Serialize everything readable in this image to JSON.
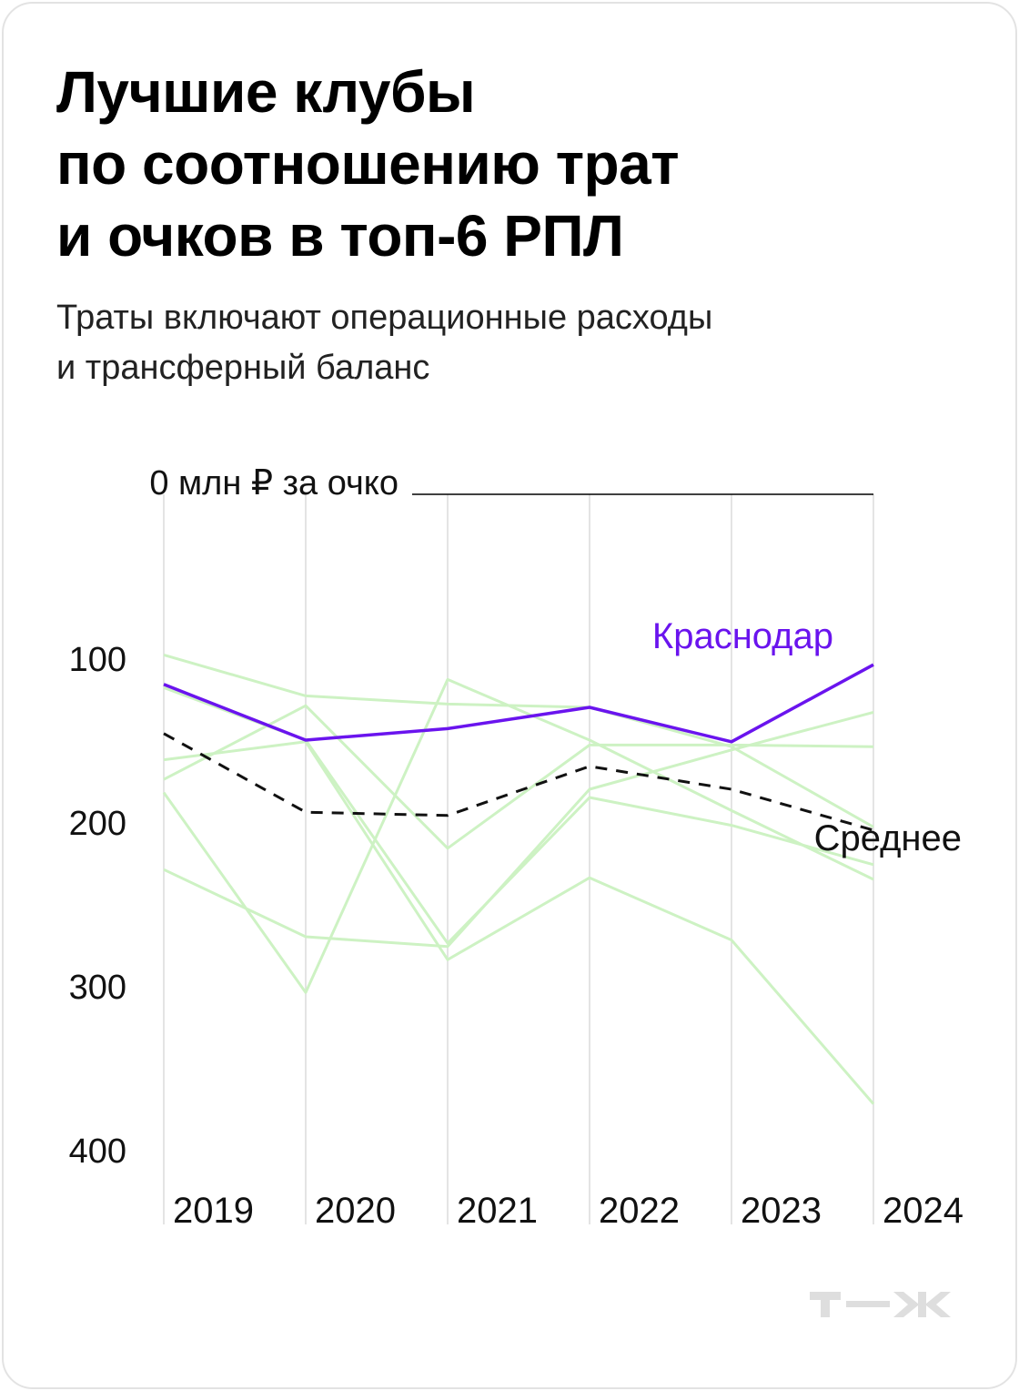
{
  "title_lines": [
    "Лучшие клубы",
    "по соотношению трат",
    "и очков в топ-6 РПЛ"
  ],
  "subtitle_lines": [
    "Траты включают операционные расходы",
    "и трансферный баланс"
  ],
  "logo_text": "т—ж",
  "colors": {
    "highlight": "#6a14ee",
    "average": "#111111",
    "other_clubs": "#cdf2c3",
    "grid": "#dcdcdc",
    "zero_line": "#000000"
  },
  "chart_data": {
    "type": "line",
    "x": [
      "2019",
      "2020",
      "2021",
      "2022",
      "2023",
      "2024"
    ],
    "y_ticks": [
      {
        "value": 0,
        "label": "0 млн ₽ за очко"
      },
      {
        "value": 100,
        "label": "100"
      },
      {
        "value": 200,
        "label": "200"
      },
      {
        "value": 300,
        "label": "300"
      },
      {
        "value": 400,
        "label": "400"
      }
    ],
    "ylim": [
      0,
      400
    ],
    "y_inverted": true,
    "grid": "vertical",
    "series": [
      {
        "name": "Краснодар",
        "role": "highlight",
        "values": [
          116,
          150,
          143,
          130,
          151,
          104
        ]
      },
      {
        "name": "Среднее",
        "role": "average",
        "values": [
          146,
          194,
          196,
          166,
          180,
          205
        ]
      },
      {
        "role": "other",
        "values": [
          98,
          123,
          128,
          130,
          154,
          203
        ]
      },
      {
        "role": "other",
        "values": [
          118,
          150,
          274,
          185,
          202,
          226
        ]
      },
      {
        "role": "other",
        "values": [
          162,
          151,
          284,
          234,
          272,
          372
        ]
      },
      {
        "role": "other",
        "values": [
          174,
          129,
          216,
          153,
          153,
          154
        ]
      },
      {
        "role": "other",
        "values": [
          229,
          270,
          276,
          180,
          156,
          133
        ]
      },
      {
        "role": "other",
        "values": [
          182,
          304,
          113,
          150,
          193,
          235
        ]
      }
    ]
  }
}
